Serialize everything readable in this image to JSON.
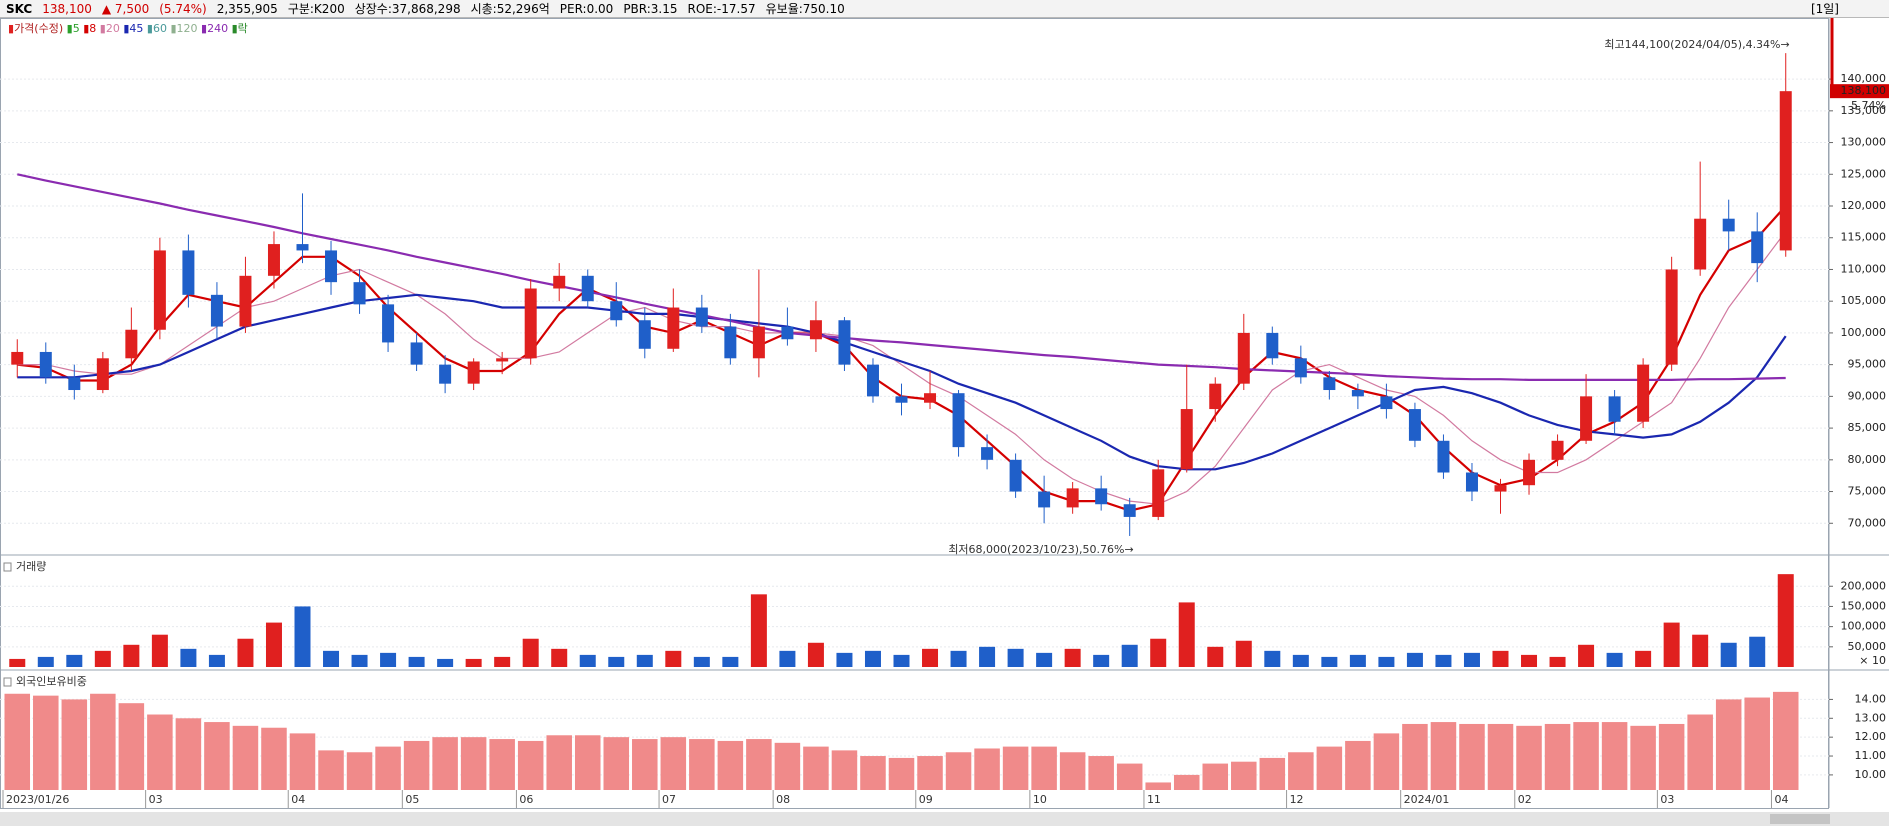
{
  "header": {
    "name": "SKC",
    "price": "138,100",
    "change": "▲ 7,500",
    "change_pct": "(5.74%)",
    "volume": "2,355,905",
    "class": "구분:K200",
    "shares": "상장수:37,868,298",
    "cap": "시총:52,296억",
    "per": "PER:0.00",
    "pbr": "PBR:3.15",
    "roe": "ROE:-17.57",
    "reserve": "유보율:750.10",
    "period": "[1일]",
    "last_change": "5.74%"
  },
  "chart_data": [
    {
      "type": "candlestick",
      "title": "가격(수정)",
      "categories": [
        "2023/01/26",
        null,
        null,
        null,
        null,
        "03",
        null,
        null,
        null,
        null,
        "04",
        null,
        null,
        null,
        "05",
        null,
        null,
        null,
        "06",
        null,
        null,
        null,
        null,
        "07",
        null,
        null,
        null,
        "08",
        null,
        null,
        null,
        null,
        "09",
        null,
        null,
        null,
        "10",
        null,
        null,
        null,
        "11",
        null,
        null,
        null,
        null,
        "12",
        null,
        null,
        null,
        "2024/01",
        null,
        null,
        null,
        "02",
        null,
        null,
        null,
        null,
        "03",
        null,
        null,
        null,
        "04"
      ],
      "open": [
        95000,
        97000,
        93000,
        91000,
        96000,
        100500,
        113000,
        106000,
        101000,
        109000,
        114000,
        113000,
        108000,
        104500,
        98500,
        95000,
        92000,
        95500,
        96000,
        107000,
        109000,
        105000,
        102000,
        97500,
        104000,
        101000,
        96000,
        101000,
        99000,
        102000,
        95000,
        90000,
        89000,
        90500,
        82000,
        80000,
        75000,
        72500,
        75500,
        73000,
        71000,
        78500,
        88000,
        92000,
        100000,
        96000,
        93000,
        91000,
        90000,
        88000,
        83000,
        78000,
        75000,
        76000,
        80000,
        83000,
        90000,
        86000,
        95000,
        110000,
        118000,
        116000,
        113000
      ],
      "high": [
        99000,
        98500,
        95000,
        97000,
        104000,
        115000,
        115500,
        108000,
        112000,
        116000,
        122000,
        114500,
        110000,
        106000,
        100000,
        96500,
        96000,
        97000,
        108500,
        111000,
        110000,
        108000,
        104000,
        107000,
        106000,
        103000,
        110000,
        104000,
        105000,
        102500,
        96000,
        92000,
        94000,
        91000,
        84000,
        81000,
        77500,
        76500,
        77500,
        74000,
        80000,
        95000,
        93000,
        103000,
        101000,
        98000,
        94000,
        92000,
        92000,
        89000,
        84000,
        79500,
        77000,
        81000,
        84000,
        93500,
        91000,
        96000,
        112000,
        127000,
        121000,
        119000,
        144100
      ],
      "low": [
        93000,
        92000,
        89500,
        90500,
        94000,
        99000,
        104000,
        99000,
        100000,
        107000,
        111000,
        106000,
        103000,
        97000,
        94000,
        90500,
        91000,
        93500,
        95000,
        105000,
        104000,
        101000,
        96000,
        97000,
        100000,
        95000,
        93000,
        98000,
        97000,
        94000,
        89000,
        87000,
        88000,
        80500,
        78500,
        74000,
        70000,
        71500,
        72000,
        68000,
        70500,
        78000,
        86000,
        91000,
        95000,
        92000,
        89500,
        88000,
        86500,
        82000,
        77000,
        73500,
        71500,
        74500,
        79000,
        82500,
        84000,
        85000,
        94000,
        109000,
        113000,
        108000,
        112000
      ],
      "close": [
        97000,
        93000,
        91000,
        96000,
        100500,
        113000,
        106000,
        101000,
        109000,
        114000,
        113000,
        108000,
        104500,
        98500,
        95000,
        92000,
        95500,
        96000,
        107000,
        109000,
        105000,
        102000,
        97500,
        104000,
        101000,
        96000,
        101000,
        99000,
        102000,
        95000,
        90000,
        89000,
        90500,
        82000,
        80000,
        75000,
        72500,
        75500,
        73000,
        71000,
        78500,
        88000,
        92000,
        100000,
        96000,
        93000,
        91000,
        90000,
        88000,
        83000,
        78000,
        75000,
        76000,
        80000,
        83000,
        90000,
        86000,
        95000,
        110000,
        118000,
        116000,
        111000,
        138100
      ],
      "color_up": "#e0201f",
      "color_down": "#1f5fc9",
      "series": [
        {
          "name": "5",
          "color": "#2ca02c"
        },
        {
          "name": "8",
          "color": "#d40000",
          "values": [
            95000,
            94500,
            92500,
            92500,
            95000,
            101000,
            106000,
            105000,
            104000,
            108000,
            112000,
            112000,
            109000,
            104000,
            100000,
            96000,
            94000,
            94000,
            97000,
            103000,
            107000,
            105000,
            101000,
            100000,
            102000,
            100000,
            98000,
            100000,
            100000,
            98000,
            93000,
            90000,
            89500,
            87000,
            83000,
            79000,
            75000,
            73500,
            73500,
            72000,
            73000,
            80000,
            87000,
            93000,
            97000,
            96000,
            93000,
            91000,
            90000,
            87000,
            82000,
            78000,
            76000,
            77000,
            80000,
            84000,
            86000,
            89000,
            96000,
            106000,
            113000,
            115000,
            120000
          ]
        },
        {
          "name": "20",
          "color": "#d27aa0",
          "values": [
            95000,
            95000,
            94000,
            93500,
            93500,
            95000,
            98000,
            101000,
            104000,
            105000,
            107000,
            109000,
            110000,
            108000,
            106000,
            103000,
            99000,
            96000,
            96000,
            97000,
            100000,
            103000,
            104000,
            102000,
            101000,
            101000,
            100000,
            100000,
            100000,
            99500,
            98000,
            95000,
            92000,
            90000,
            87000,
            84000,
            80000,
            77000,
            75000,
            73500,
            73000,
            75000,
            79000,
            85000,
            91000,
            94000,
            95000,
            93000,
            91000,
            90000,
            87000,
            83000,
            80000,
            78000,
            78000,
            80000,
            83000,
            86000,
            89000,
            96000,
            104000,
            110000,
            116000
          ]
        },
        {
          "name": "45",
          "color": "#1a27b0",
          "values": [
            93000,
            93000,
            93000,
            93500,
            94000,
            95000,
            97000,
            99000,
            101000,
            102000,
            103000,
            104000,
            105000,
            105500,
            106000,
            105500,
            105000,
            104000,
            104000,
            104000,
            104000,
            103500,
            103000,
            103000,
            102500,
            102000,
            101500,
            101000,
            100000,
            98500,
            97000,
            95500,
            94000,
            92000,
            90500,
            89000,
            87000,
            85000,
            83000,
            80500,
            79000,
            78500,
            78500,
            79500,
            81000,
            83000,
            85000,
            87000,
            89000,
            91000,
            91500,
            90500,
            89000,
            87000,
            85500,
            84500,
            84000,
            83500,
            84000,
            86000,
            89000,
            93000,
            99500
          ]
        },
        {
          "name": "60",
          "color": "#4a9a9a"
        },
        {
          "name": "120",
          "color": "#8fb08f"
        },
        {
          "name": "240",
          "color": "#8a2bb0",
          "values": [
            125000,
            124000,
            123100,
            122200,
            121300,
            120400,
            119400,
            118500,
            117600,
            116700,
            115700,
            114800,
            113900,
            113000,
            112000,
            111100,
            110200,
            109300,
            108300,
            107400,
            106500,
            105600,
            104600,
            103700,
            102800,
            101900,
            100900,
            100000,
            99600,
            99200,
            98800,
            98500,
            98100,
            97700,
            97300,
            96900,
            96500,
            96200,
            95800,
            95400,
            95000,
            94800,
            94600,
            94300,
            94100,
            93900,
            93700,
            93500,
            93200,
            93000,
            92800,
            92700,
            92700,
            92600,
            92600,
            92600,
            92600,
            92600,
            92600,
            92700,
            92700,
            92800,
            92900
          ]
        },
        {
          "name": "락",
          "color": "#2a8a2a"
        }
      ],
      "annotations": [
        "최고144,100(2024/04/05),4.34%→",
        "최저68,000(2023/10/23),50.76%→"
      ],
      "ylim": [
        65000,
        149000
      ],
      "yticks": [
        {
          "value": 70000,
          "label": "70,000"
        },
        {
          "value": 75000,
          "label": "75,000"
        },
        {
          "value": 80000,
          "label": "80,000"
        },
        {
          "value": 85000,
          "label": "85,000"
        },
        {
          "value": 90000,
          "label": "90,000"
        },
        {
          "value": 95000,
          "label": "95,000"
        },
        {
          "value": 100000,
          "label": "100,000"
        },
        {
          "value": 105000,
          "label": "105,000"
        },
        {
          "value": 110000,
          "label": "110,000"
        },
        {
          "value": 115000,
          "label": "115,000"
        },
        {
          "value": 120000,
          "label": "120,000"
        },
        {
          "value": 125000,
          "label": "125,000"
        },
        {
          "value": 130000,
          "label": "130,000"
        },
        {
          "value": 135000,
          "label": "135,000"
        },
        {
          "value": 140000,
          "label": "140,000"
        }
      ],
      "grid": true
    },
    {
      "type": "bar",
      "title": "거래량",
      "unit": "× 10",
      "values": [
        20000,
        25000,
        30000,
        40000,
        55000,
        80000,
        45000,
        30000,
        70000,
        110000,
        150000,
        40000,
        30000,
        35000,
        25000,
        20000,
        20000,
        25000,
        70000,
        45000,
        30000,
        25000,
        30000,
        40000,
        25000,
        25000,
        180000,
        40000,
        60000,
        35000,
        40000,
        30000,
        45000,
        40000,
        50000,
        45000,
        35000,
        45000,
        30000,
        55000,
        70000,
        160000,
        50000,
        65000,
        40000,
        30000,
        25000,
        30000,
        25000,
        35000,
        30000,
        35000,
        40000,
        30000,
        25000,
        55000,
        35000,
        40000,
        110000,
        80000,
        60000,
        75000,
        230000
      ],
      "ylim": [
        0,
        270000
      ],
      "yticks": [
        {
          "value": 50000,
          "label": "50,000"
        },
        {
          "value": 100000,
          "label": "100,000"
        },
        {
          "value": 150000,
          "label": "150,000"
        },
        {
          "value": 200000,
          "label": "200,000"
        }
      ],
      "grid": true
    },
    {
      "type": "bar",
      "title": "외국인보유비중",
      "color": "#f08a8a",
      "values": [
        14.3,
        14.2,
        14.0,
        14.3,
        13.8,
        13.2,
        13.0,
        12.8,
        12.6,
        12.5,
        12.2,
        11.3,
        11.2,
        11.5,
        11.8,
        12.0,
        12.0,
        11.9,
        11.8,
        12.1,
        12.1,
        12.0,
        11.9,
        12.0,
        11.9,
        11.8,
        11.9,
        11.7,
        11.5,
        11.3,
        11.0,
        10.9,
        11.0,
        11.2,
        11.4,
        11.5,
        11.5,
        11.2,
        11.0,
        10.6,
        9.6,
        10.0,
        10.6,
        10.7,
        10.9,
        11.2,
        11.5,
        11.8,
        12.2,
        12.7,
        12.8,
        12.7,
        12.7,
        12.6,
        12.7,
        12.8,
        12.8,
        12.6,
        12.7,
        13.2,
        14.0,
        14.1,
        14.4
      ],
      "ylim": [
        9.2,
        15.4
      ],
      "yticks": [
        {
          "value": 10,
          "label": "10.00"
        },
        {
          "value": 11,
          "label": "11.00"
        },
        {
          "value": 12,
          "label": "12.00"
        },
        {
          "value": 13,
          "label": "13.00"
        },
        {
          "value": 14,
          "label": "14.00"
        }
      ],
      "grid": true
    }
  ]
}
